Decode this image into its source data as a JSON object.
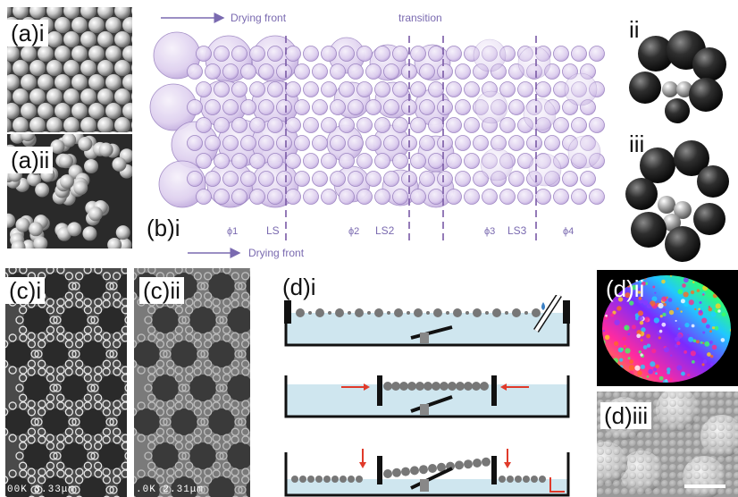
{
  "labels": {
    "a_i": "(a)i",
    "a_ii": "(a)ii",
    "b_i": "(b)i",
    "b_ii": "ii",
    "b_iii": "iii",
    "c_i": "(c)i",
    "c_ii": "(c)ii",
    "d_i": "(d)i",
    "d_ii": "(d)ii",
    "d_iii": "(d)iii"
  },
  "diagram_b": {
    "top_arrow_label": "Drying front",
    "transition_label": "transition",
    "bottom_arrow_label": "Drying front",
    "phase_labels": [
      "ϕ1",
      "LS",
      "ϕ2",
      "LS2",
      "ϕ3",
      "LS3",
      "ϕ4"
    ]
  },
  "sem_c": {
    "c_i_scale": "00K 3.33μm",
    "c_ii_scale": ".0K 2.31μm"
  },
  "colors": {
    "sphere_fill": "#d9c9ec",
    "sphere_stroke": "#8c6fb3",
    "dash_line": "#7a5aa6",
    "arrow": "#7a6ab0",
    "water": "#cfe6ef",
    "red_arrow": "#e03a2a"
  }
}
